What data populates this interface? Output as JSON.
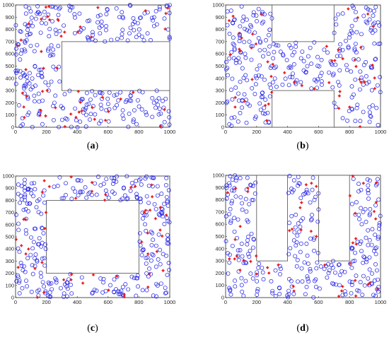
{
  "chart_data": [
    {
      "type": "scatter",
      "panel": "(a)",
      "panel_letter": "a",
      "xlim": [
        0,
        1000
      ],
      "ylim": [
        0,
        1000
      ],
      "x_ticks": [
        0,
        200,
        400,
        600,
        800,
        1000
      ],
      "y_ticks": [
        0,
        100,
        200,
        300,
        400,
        500,
        600,
        700,
        800,
        900,
        1000
      ],
      "grid": false,
      "obstacles": [
        {
          "x": [
            300,
            1000
          ],
          "y": [
            300,
            700
          ]
        }
      ],
      "series": [
        {
          "marker": "circle",
          "color": "#1f1fe6",
          "count": 300
        },
        {
          "marker": "star",
          "color": "#e61e1e",
          "count": 50
        }
      ]
    },
    {
      "type": "scatter",
      "panel": "(b)",
      "panel_letter": "b",
      "xlim": [
        0,
        1000
      ],
      "ylim": [
        0,
        1000
      ],
      "x_ticks": [
        0,
        200,
        400,
        600,
        800,
        1000
      ],
      "y_ticks": [
        0,
        100,
        200,
        300,
        400,
        500,
        600,
        700,
        800,
        900,
        1000
      ],
      "grid": false,
      "obstacles": [
        {
          "x": [
            300,
            700
          ],
          "y": [
            700,
            1000
          ]
        },
        {
          "x": [
            300,
            700
          ],
          "y": [
            0,
            300
          ]
        }
      ],
      "series": [
        {
          "marker": "circle",
          "color": "#1f1fe6",
          "count": 300
        },
        {
          "marker": "star",
          "color": "#e61e1e",
          "count": 50
        }
      ]
    },
    {
      "type": "scatter",
      "panel": "(c)",
      "panel_letter": "c",
      "xlim": [
        0,
        1000
      ],
      "ylim": [
        0,
        1000
      ],
      "x_ticks": [
        0,
        200,
        400,
        600,
        800,
        1000
      ],
      "y_ticks": [
        0,
        100,
        200,
        300,
        400,
        500,
        600,
        700,
        800,
        900,
        1000
      ],
      "grid": false,
      "obstacles": [
        {
          "x": [
            200,
            800
          ],
          "y": [
            200,
            800
          ]
        }
      ],
      "series": [
        {
          "marker": "circle",
          "color": "#1f1fe6",
          "count": 300
        },
        {
          "marker": "star",
          "color": "#e61e1e",
          "count": 50
        }
      ]
    },
    {
      "type": "scatter",
      "panel": "(d)",
      "panel_letter": "d",
      "xlim": [
        0,
        1000
      ],
      "ylim": [
        0,
        1000
      ],
      "x_ticks": [
        0,
        200,
        400,
        600,
        800,
        1000
      ],
      "y_ticks": [
        0,
        100,
        200,
        300,
        400,
        500,
        600,
        700,
        800,
        900,
        1000
      ],
      "grid": false,
      "obstacles": [
        {
          "x": [
            200,
            400
          ],
          "y": [
            300,
            1000
          ]
        },
        {
          "x": [
            600,
            800
          ],
          "y": [
            300,
            1000
          ]
        }
      ],
      "series": [
        {
          "marker": "circle",
          "color": "#1f1fe6",
          "count": 300
        },
        {
          "marker": "star",
          "color": "#e61e1e",
          "count": 50
        }
      ]
    }
  ]
}
